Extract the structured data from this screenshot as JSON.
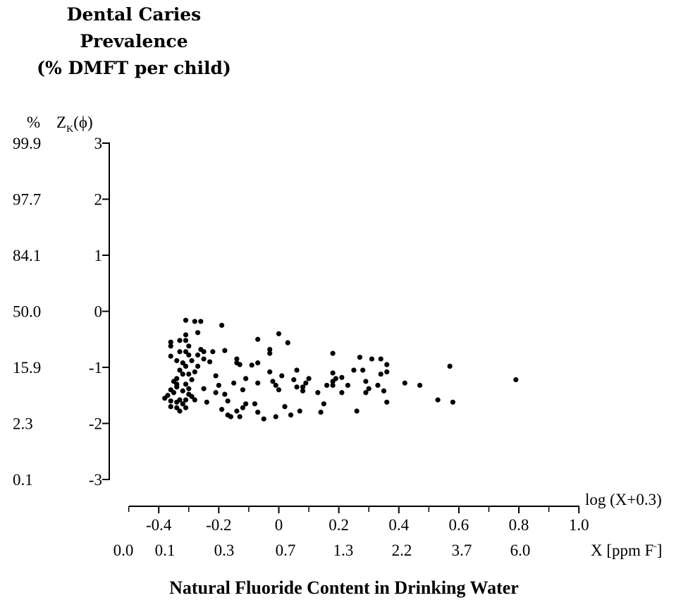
{
  "title_lines": [
    "Dental Caries",
    "Prevalence",
    "(% DMFT per child)"
  ],
  "chart_data": {
    "type": "scatter",
    "y_axis": {
      "left_header": "%",
      "right_header": "Z",
      "right_header_sub": "K",
      "right_header_suffix": "(ϕ)",
      "z_ticks": [
        "3",
        "2",
        "1",
        "0",
        "-1",
        "-2",
        "-3"
      ],
      "percent_ticks": [
        "99.9",
        "97.7",
        "84.1",
        "50.0",
        "15.9",
        "2.3",
        "0.1"
      ],
      "ylim": [
        -3,
        3
      ]
    },
    "x_axis": {
      "log_label": "log (X+0.3)",
      "log_ticks": [
        "-0.4",
        "-0.2",
        "0",
        "0.2",
        "0.4",
        "0.6",
        "0.8",
        "1.0"
      ],
      "ppm_ticks": [
        "0.0",
        "0.1",
        "0.3",
        "0.7",
        "1.3",
        "2.2",
        "3.7",
        "6.0"
      ],
      "ppm_label": "X [ppm F",
      "ppm_label_sup": "-",
      "ppm_label_end": "]",
      "xlim": [
        -0.5,
        1.0
      ],
      "xlabel": "Natural Fluoride Content in Drinking Water"
    },
    "points": [
      [
        -0.36,
        -0.55
      ],
      [
        -0.36,
        -0.62
      ],
      [
        -0.36,
        -0.8
      ],
      [
        -0.36,
        -1.4
      ],
      [
        -0.36,
        -1.6
      ],
      [
        -0.36,
        -1.7
      ],
      [
        -0.37,
        -1.5
      ],
      [
        -0.38,
        -1.55
      ],
      [
        -0.35,
        -1.25
      ],
      [
        -0.35,
        -1.45
      ],
      [
        -0.34,
        -0.88
      ],
      [
        -0.34,
        -1.2
      ],
      [
        -0.34,
        -1.3
      ],
      [
        -0.34,
        -1.35
      ],
      [
        -0.34,
        -1.62
      ],
      [
        -0.34,
        -1.72
      ],
      [
        -0.33,
        -0.52
      ],
      [
        -0.33,
        -0.72
      ],
      [
        -0.33,
        -1.05
      ],
      [
        -0.33,
        -1.58
      ],
      [
        -0.33,
        -1.78
      ],
      [
        -0.32,
        -0.92
      ],
      [
        -0.32,
        -1.12
      ],
      [
        -0.32,
        -1.42
      ],
      [
        -0.32,
        -1.65
      ],
      [
        -0.31,
        -0.16
      ],
      [
        -0.31,
        -0.42
      ],
      [
        -0.31,
        -0.52
      ],
      [
        -0.31,
        -0.72
      ],
      [
        -0.31,
        -0.98
      ],
      [
        -0.31,
        -1.3
      ],
      [
        -0.31,
        -1.58
      ],
      [
        -0.31,
        -1.72
      ],
      [
        -0.3,
        -0.62
      ],
      [
        -0.3,
        -0.78
      ],
      [
        -0.3,
        -1.12
      ],
      [
        -0.3,
        -1.38
      ],
      [
        -0.3,
        -1.48
      ],
      [
        -0.29,
        -0.88
      ],
      [
        -0.29,
        -1.22
      ],
      [
        -0.29,
        -1.52
      ],
      [
        -0.28,
        -0.18
      ],
      [
        -0.28,
        -1.08
      ],
      [
        -0.28,
        -1.58
      ],
      [
        -0.27,
        -0.38
      ],
      [
        -0.27,
        -0.78
      ],
      [
        -0.27,
        -0.98
      ],
      [
        -0.26,
        -0.18
      ],
      [
        -0.26,
        -0.68
      ],
      [
        -0.25,
        -0.85
      ],
      [
        -0.25,
        -1.38
      ],
      [
        -0.25,
        -0.72
      ],
      [
        -0.24,
        -1.62
      ],
      [
        -0.23,
        -0.9
      ],
      [
        -0.22,
        -0.72
      ],
      [
        -0.21,
        -1.45
      ],
      [
        -0.21,
        -1.15
      ],
      [
        -0.2,
        -1.32
      ],
      [
        -0.19,
        -0.25
      ],
      [
        -0.19,
        -1.75
      ],
      [
        -0.18,
        -0.7
      ],
      [
        -0.18,
        -1.48
      ],
      [
        -0.17,
        -1.85
      ],
      [
        -0.17,
        -1.6
      ],
      [
        -0.16,
        -1.88
      ],
      [
        -0.15,
        -1.28
      ],
      [
        -0.14,
        -0.85
      ],
      [
        -0.14,
        -0.92
      ],
      [
        -0.14,
        -1.78
      ],
      [
        -0.13,
        -0.95
      ],
      [
        -0.13,
        -1.88
      ],
      [
        -0.12,
        -1.72
      ],
      [
        -0.12,
        -1.4
      ],
      [
        -0.11,
        -1.2
      ],
      [
        -0.11,
        -1.65
      ],
      [
        -0.09,
        -0.96
      ],
      [
        -0.08,
        -1.65
      ],
      [
        -0.07,
        -0.5
      ],
      [
        -0.07,
        -0.92
      ],
      [
        -0.07,
        -1.28
      ],
      [
        -0.07,
        -1.8
      ],
      [
        -0.05,
        -1.92
      ],
      [
        -0.03,
        -0.75
      ],
      [
        -0.03,
        -0.68
      ],
      [
        -0.03,
        -1.08
      ],
      [
        -0.02,
        -1.25
      ],
      [
        -0.01,
        -1.32
      ],
      [
        -0.01,
        -1.88
      ],
      [
        0.0,
        -0.4
      ],
      [
        0.0,
        -1.4
      ],
      [
        0.01,
        -1.15
      ],
      [
        0.02,
        -1.7
      ],
      [
        0.03,
        -0.56
      ],
      [
        0.04,
        -1.85
      ],
      [
        0.05,
        -1.22
      ],
      [
        0.06,
        -1.35
      ],
      [
        0.06,
        -1.05
      ],
      [
        0.07,
        -1.78
      ],
      [
        0.08,
        -1.42
      ],
      [
        0.08,
        -1.35
      ],
      [
        0.09,
        -1.28
      ],
      [
        0.1,
        -1.2
      ],
      [
        0.13,
        -1.45
      ],
      [
        0.14,
        -1.8
      ],
      [
        0.15,
        -1.65
      ],
      [
        0.16,
        -1.32
      ],
      [
        0.18,
        -0.75
      ],
      [
        0.18,
        -1.1
      ],
      [
        0.18,
        -1.25
      ],
      [
        0.18,
        -1.32
      ],
      [
        0.19,
        -1.2
      ],
      [
        0.21,
        -1.18
      ],
      [
        0.21,
        -1.45
      ],
      [
        0.23,
        -1.32
      ],
      [
        0.25,
        -1.05
      ],
      [
        0.26,
        -1.78
      ],
      [
        0.27,
        -0.82
      ],
      [
        0.28,
        -1.05
      ],
      [
        0.29,
        -1.25
      ],
      [
        0.29,
        -1.45
      ],
      [
        0.3,
        -1.38
      ],
      [
        0.31,
        -0.85
      ],
      [
        0.33,
        -1.32
      ],
      [
        0.34,
        -0.85
      ],
      [
        0.34,
        -1.12
      ],
      [
        0.35,
        -1.42
      ],
      [
        0.36,
        -0.95
      ],
      [
        0.36,
        -1.08
      ],
      [
        0.36,
        -1.62
      ],
      [
        0.42,
        -1.28
      ],
      [
        0.47,
        -1.32
      ],
      [
        0.53,
        -1.58
      ],
      [
        0.57,
        -0.98
      ],
      [
        0.58,
        -1.62
      ],
      [
        0.79,
        -1.22
      ]
    ]
  }
}
